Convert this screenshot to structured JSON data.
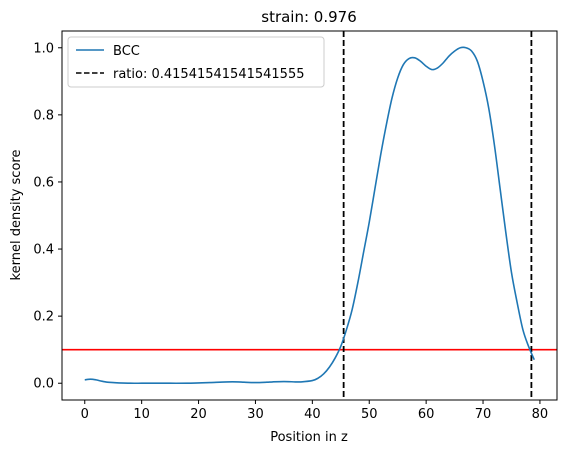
{
  "chart_data": {
    "type": "line",
    "title": "strain: 0.976",
    "xlabel": "Position in z",
    "ylabel": "kernel density score",
    "xlim": [
      -4,
      83
    ],
    "ylim": [
      -0.05,
      1.05
    ],
    "xticks": [
      0,
      10,
      20,
      30,
      40,
      50,
      60,
      70,
      80
    ],
    "yticks": [
      0.0,
      0.2,
      0.4,
      0.6,
      0.8,
      1.0
    ],
    "xtick_labels": [
      "0",
      "10",
      "20",
      "30",
      "40",
      "50",
      "60",
      "70",
      "80"
    ],
    "ytick_labels": [
      "0.0",
      "0.2",
      "0.4",
      "0.6",
      "0.8",
      "1.0"
    ],
    "grid": false,
    "legend_position": "upper-left",
    "series": [
      {
        "name": "BCC",
        "color": "#1f77b4",
        "x": [
          0,
          1,
          2,
          3,
          4,
          5,
          6,
          8,
          10,
          12,
          15,
          18,
          20,
          22,
          25,
          27,
          28,
          30,
          32,
          33,
          35,
          37,
          38,
          40,
          41,
          42,
          43,
          44,
          45,
          46,
          47,
          48,
          49,
          50,
          51,
          52,
          53,
          54,
          55,
          56,
          57,
          58,
          59,
          60,
          61,
          62,
          63,
          64,
          65,
          66,
          67,
          68,
          69,
          70,
          71,
          72,
          73,
          74,
          75,
          76,
          77,
          78,
          79
        ],
        "y": [
          0.01,
          0.012,
          0.01,
          0.006,
          0.003,
          0.002,
          0.001,
          0.0,
          0.0,
          0.0,
          0.0,
          0.0,
          0.001,
          0.002,
          0.004,
          0.004,
          0.003,
          0.002,
          0.003,
          0.004,
          0.005,
          0.004,
          0.004,
          0.008,
          0.015,
          0.028,
          0.048,
          0.075,
          0.11,
          0.16,
          0.22,
          0.3,
          0.39,
          0.48,
          0.58,
          0.68,
          0.77,
          0.85,
          0.91,
          0.95,
          0.968,
          0.97,
          0.96,
          0.945,
          0.935,
          0.94,
          0.955,
          0.975,
          0.99,
          1.0,
          1.0,
          0.99,
          0.96,
          0.9,
          0.82,
          0.71,
          0.58,
          0.45,
          0.33,
          0.24,
          0.16,
          0.11,
          0.07
        ]
      }
    ],
    "hlines": [
      {
        "y": 0.1,
        "color": "#ff0000"
      }
    ],
    "vlines": [
      {
        "x": 45.5,
        "color": "#000000",
        "style": "dashed",
        "legend": "ratio: 0.41541541541541555"
      },
      {
        "x": 78.5,
        "color": "#000000",
        "style": "dashed"
      }
    ]
  }
}
